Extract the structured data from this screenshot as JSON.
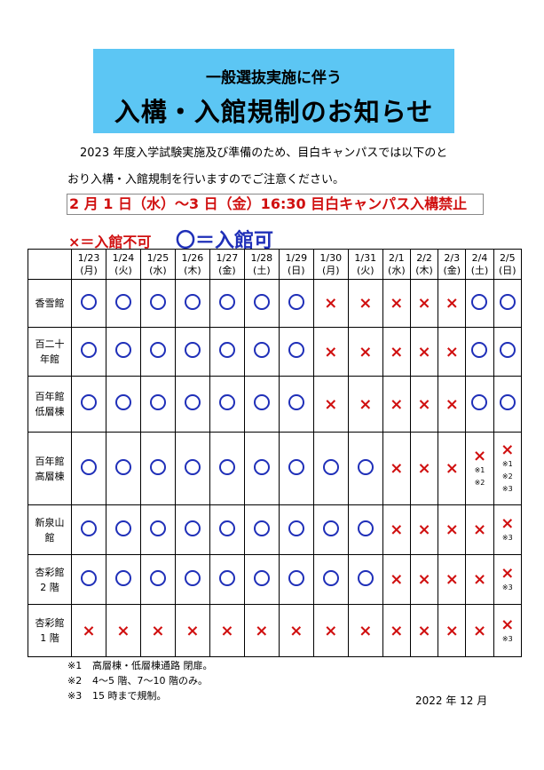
{
  "title": {
    "line1": "一般選抜実施に伴う",
    "line2": "入構・入館規制のお知らせ",
    "bg_color": "#5cc6f4"
  },
  "intro": {
    "line1": "2023 年度入学試験実施及び準備のため、目白キャンパスでは以下のと",
    "line2": "おり入構・入館規制を行いますのでご注意ください。"
  },
  "notice": "2 月 1 日（水）～3 日（金）16:30 目白キャンパス入構禁止",
  "legend": {
    "x": "×＝入館不可",
    "o": "〇＝入館可",
    "x_color": "#d01010",
    "o_color": "#1f2fb8"
  },
  "table": {
    "dates": [
      [
        "1/23",
        "(月)"
      ],
      [
        "1/24",
        "(火)"
      ],
      [
        "1/25",
        "(水)"
      ],
      [
        "1/26",
        "(木)"
      ],
      [
        "1/27",
        "(金)"
      ],
      [
        "1/28",
        "(土)"
      ],
      [
        "1/29",
        "(日)"
      ],
      [
        "1/30",
        "(月)"
      ],
      [
        "1/31",
        "(火)"
      ],
      [
        "2/1",
        "(水)"
      ],
      [
        "2/2",
        "(木)"
      ],
      [
        "2/3",
        "(金)"
      ],
      [
        "2/4",
        "(土)"
      ],
      [
        "2/5",
        "(日)"
      ]
    ],
    "rows": [
      {
        "label": [
          "香雪館"
        ],
        "h": 54,
        "cells": [
          "o",
          "o",
          "o",
          "o",
          "o",
          "o",
          "o",
          "x",
          "x",
          "x",
          "x",
          "x",
          "o",
          "o"
        ]
      },
      {
        "label": [
          "百二十",
          "年館"
        ],
        "h": 55,
        "cells": [
          "o",
          "o",
          "o",
          "o",
          "o",
          "o",
          "o",
          "x",
          "x",
          "x",
          "x",
          "x",
          "o",
          "o"
        ]
      },
      {
        "label": [
          "百年館",
          "低層棟"
        ],
        "h": 63,
        "cells": [
          "o",
          "o",
          "o",
          "o",
          "o",
          "o",
          "o",
          "x",
          "x",
          "x",
          "x",
          "x",
          "o",
          "o"
        ]
      },
      {
        "label": [
          "百年館",
          "高層棟"
        ],
        "h": 82,
        "cells": [
          "o",
          "o",
          "o",
          "o",
          "o",
          "o",
          "o",
          "o",
          "o",
          "x",
          "x",
          "x",
          "x|※1|※2",
          "x|※1|※2|※3"
        ]
      },
      {
        "label": [
          "新泉山",
          "館"
        ],
        "h": 56,
        "cells": [
          "o",
          "o",
          "o",
          "o",
          "o",
          "o",
          "o",
          "o",
          "o",
          "x",
          "x",
          "x",
          "x",
          "x|※3"
        ]
      },
      {
        "label": [
          "杏彩館",
          "2 階"
        ],
        "h": 56,
        "cells": [
          "o",
          "o",
          "o",
          "o",
          "o",
          "o",
          "o",
          "o",
          "o",
          "x",
          "x",
          "x",
          "x",
          "x|※3"
        ]
      },
      {
        "label": [
          "杏彩館",
          "1 階"
        ],
        "h": 59,
        "cells": [
          "x",
          "x",
          "x",
          "x",
          "x",
          "x",
          "x",
          "x",
          "x",
          "x",
          "x",
          "x",
          "x",
          "x|※3"
        ]
      }
    ]
  },
  "footnotes": [
    [
      "※1",
      "高層棟・低層棟通路 閉扉。"
    ],
    [
      "※2",
      "4～5 階、7～10 階のみ。"
    ],
    [
      "※3",
      "15 時まで規制。"
    ]
  ],
  "date": "2022 年 12 月"
}
